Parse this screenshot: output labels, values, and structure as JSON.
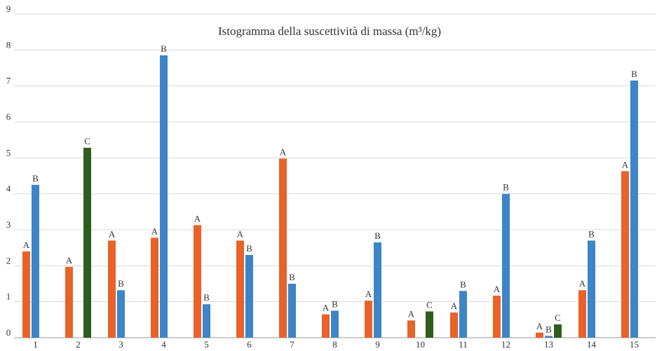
{
  "chart_data": {
    "type": "bar",
    "title": "Istogramma della suscettività di massa (m³/kg)",
    "categories": [
      "1",
      "2",
      "3",
      "4",
      "5",
      "6",
      "7",
      "8",
      "9",
      "10",
      "11",
      "12",
      "13",
      "14",
      "15"
    ],
    "series": [
      {
        "name": "A",
        "color": "#e8622a",
        "values": [
          2.4,
          1.97,
          2.7,
          2.78,
          3.13,
          2.7,
          4.98,
          0.65,
          1.03,
          0.48,
          0.7,
          1.17,
          0.14,
          1.32,
          4.63
        ]
      },
      {
        "name": "B",
        "color": "#3d85c6",
        "values": [
          4.25,
          null,
          1.32,
          7.85,
          0.93,
          2.3,
          1.5,
          0.75,
          2.65,
          null,
          1.3,
          4.0,
          0.05,
          2.7,
          7.15
        ]
      },
      {
        "name": "C",
        "color": "#2e5e1a",
        "values": [
          null,
          5.28,
          null,
          null,
          null,
          null,
          null,
          null,
          null,
          0.73,
          null,
          null,
          0.37,
          null,
          null
        ]
      }
    ],
    "ylim": [
      0,
      9
    ],
    "yticks": [
      0,
      1,
      2,
      3,
      4,
      5,
      6,
      7,
      8,
      9
    ],
    "grid": true
  }
}
